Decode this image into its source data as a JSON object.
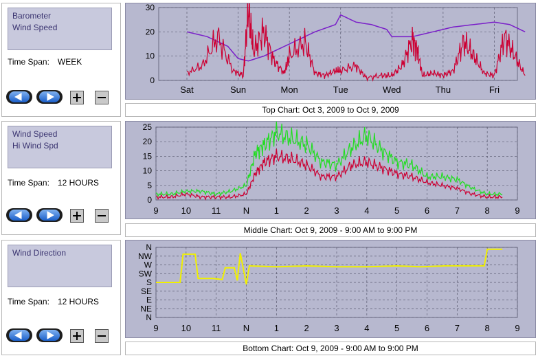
{
  "panels": [
    {
      "series": [
        "Barometer",
        "Wind Speed"
      ],
      "time_span_label": "Time Span:",
      "time_span_value": "WEEK",
      "caption": "Top Chart:  Oct 3, 2009  to  Oct 9, 2009"
    },
    {
      "series": [
        "Wind Speed",
        "Hi Wind Spd"
      ],
      "time_span_label": "Time Span:",
      "time_span_value": "12 HOURS",
      "caption": "Middle Chart:  Oct 9, 2009 - 9:00 AM  to  9:00 PM"
    },
    {
      "series": [
        "Wind Direction"
      ],
      "time_span_label": "Time Span:",
      "time_span_value": "12 HOURS",
      "caption": "Bottom Chart:  Oct 9, 2009 - 9:00 AM  to  9:00 PM"
    }
  ],
  "buttons": {
    "prev_icon": "left-arrow-icon",
    "next_icon": "right-arrow-icon",
    "plus": "+",
    "minus": "−"
  },
  "colors": {
    "plot_bg": "#b7b8cf",
    "wind": "#cc0033",
    "baro": "#7a1fc9",
    "hi_wind": "#22dd22",
    "dir": "#f0f000",
    "grid": "#5a5a70"
  },
  "chart_data": [
    {
      "type": "line",
      "x_ticks": [
        "Sat",
        "Sun",
        "Mon",
        "Tue",
        "Wed",
        "Thu",
        "Fri"
      ],
      "ylim": [
        0,
        30
      ],
      "y_ticks": [
        "0",
        "10",
        "20",
        "30"
      ],
      "series": [
        {
          "key": "baro",
          "x": [
            0,
            0.4,
            0.8,
            1.0,
            1.2,
            1.5,
            1.8,
            2.1,
            2.5,
            2.9,
            3.0,
            3.3,
            3.6,
            3.9,
            4.0,
            4.4,
            4.8,
            5.2,
            5.6,
            6.0,
            6.3,
            6.5,
            6.6
          ],
          "values": [
            20,
            18,
            14,
            9,
            8,
            10,
            13,
            16,
            20,
            23,
            27,
            24,
            23,
            21,
            18,
            18,
            20,
            22,
            23,
            24,
            23,
            21,
            20
          ]
        },
        {
          "key": "wind",
          "x": [
            0,
            0.3,
            0.6,
            0.9,
            1.1,
            1.2,
            1.3,
            1.5,
            1.7,
            1.9,
            2.0,
            2.3,
            2.5,
            2.7,
            2.9,
            3.0,
            3.3,
            3.5,
            3.8,
            4.0,
            4.2,
            4.4,
            4.5,
            4.6,
            4.8,
            5.0,
            5.2,
            5.4,
            5.6,
            5.8,
            6.0,
            6.2,
            6.4,
            6.6
          ],
          "values": [
            3,
            6,
            18,
            4,
            2,
            30,
            12,
            20,
            8,
            3,
            10,
            16,
            3,
            2,
            4,
            4,
            6,
            1,
            2,
            2,
            6,
            17,
            12,
            2,
            3,
            2,
            4,
            16,
            10,
            3,
            2,
            18,
            10,
            2
          ]
        }
      ]
    },
    {
      "type": "line",
      "x_ticks": [
        "9",
        "10",
        "11",
        "N",
        "1",
        "2",
        "3",
        "4",
        "5",
        "6",
        "7",
        "8",
        "9"
      ],
      "ylim": [
        0,
        25
      ],
      "y_ticks": [
        "0",
        "5",
        "10",
        "15",
        "20",
        "25"
      ],
      "series": [
        {
          "key": "hi_wind",
          "x": [
            0,
            0.5,
            1,
            1.5,
            2,
            2.5,
            3,
            3.3,
            3.6,
            4,
            4.5,
            5,
            5.5,
            6,
            6.5,
            7,
            7.5,
            8,
            8.5,
            9,
            9.5,
            10,
            10.5,
            11,
            11.5
          ],
          "values": [
            2,
            2,
            3,
            3,
            2,
            3,
            5,
            16,
            19,
            23,
            21,
            19,
            13,
            12,
            18,
            22,
            17,
            13,
            12,
            8,
            8,
            7,
            4,
            2,
            2
          ]
        },
        {
          "key": "wind",
          "x": [
            0,
            0.5,
            1,
            1.5,
            2,
            2.5,
            3,
            3.3,
            3.6,
            4,
            4.5,
            5,
            5.5,
            6,
            6.5,
            7,
            7.5,
            8,
            8.5,
            9,
            9.5,
            10,
            10.5,
            11,
            11.5
          ],
          "values": [
            1,
            1,
            2,
            1,
            1,
            1,
            2,
            9,
            13,
            15,
            14,
            12,
            8,
            8,
            12,
            13,
            11,
            9,
            8,
            6,
            5,
            4,
            2,
            1,
            1
          ]
        }
      ]
    },
    {
      "type": "line",
      "x_ticks": [
        "9",
        "10",
        "11",
        "N",
        "1",
        "2",
        "3",
        "4",
        "5",
        "6",
        "7",
        "8",
        "9"
      ],
      "y_ticks": [
        "N",
        "NW",
        "W",
        "SW",
        "S",
        "SE",
        "E",
        "NE",
        "N"
      ],
      "series": [
        {
          "key": "dir",
          "x": [
            0,
            0.8,
            0.9,
            1.3,
            1.4,
            1.8,
            1.9,
            2.2,
            2.3,
            2.6,
            2.7,
            2.8,
            3.0,
            3.1,
            4,
            5,
            6,
            7,
            8,
            8.8,
            9.6,
            10.9,
            11.0,
            11.5
          ],
          "values": [
            180,
            180,
            325,
            325,
            200,
            200,
            200,
            195,
            255,
            255,
            190,
            330,
            170,
            265,
            260,
            265,
            260,
            260,
            265,
            260,
            265,
            265,
            350,
            350
          ]
        }
      ]
    }
  ]
}
